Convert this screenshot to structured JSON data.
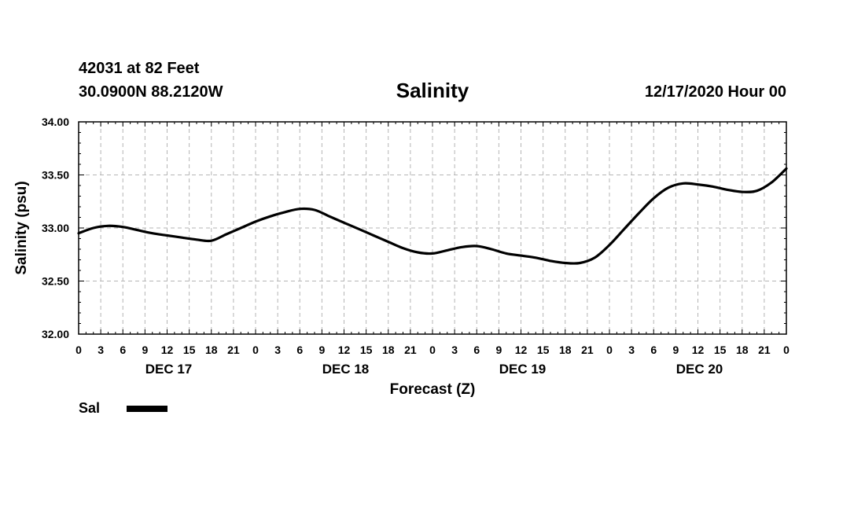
{
  "header": {
    "station": "42031 at 82 Feet",
    "coordinates": "30.0900N 88.2120W",
    "run_time": "12/17/2020 Hour 00"
  },
  "chart_data": {
    "type": "line",
    "title": "Salinity",
    "xlabel": "Forecast (Z)",
    "ylabel": "Salinity (psu)",
    "ylim": [
      32.0,
      34.0
    ],
    "yticks": [
      "32.00",
      "32.50",
      "33.00",
      "33.50",
      "34.00"
    ],
    "xlim_hours": [
      0,
      96
    ],
    "xtick_labels": [
      "0",
      "3",
      "6",
      "9",
      "12",
      "15",
      "18",
      "21",
      "0",
      "3",
      "6",
      "9",
      "12",
      "15",
      "18",
      "21",
      "0",
      "3",
      "6",
      "9",
      "12",
      "15",
      "18",
      "21",
      "0",
      "3",
      "6",
      "9",
      "12",
      "15",
      "18",
      "21",
      "0"
    ],
    "day_labels": [
      "DEC 17",
      "DEC 18",
      "DEC 19",
      "DEC 20"
    ],
    "grid": true,
    "legend_position": "bottom-left",
    "series": [
      {
        "name": "Sal",
        "color": "#000000",
        "x_hours": [
          0,
          2,
          4,
          6,
          8,
          10,
          12,
          14,
          16,
          18,
          20,
          22,
          24,
          26,
          28,
          30,
          32,
          34,
          36,
          38,
          40,
          42,
          44,
          46,
          48,
          50,
          52,
          54,
          56,
          58,
          60,
          62,
          64,
          66,
          68,
          70,
          72,
          74,
          76,
          78,
          80,
          82,
          84,
          86,
          88,
          90,
          92,
          94,
          96
        ],
        "values": [
          32.95,
          33.0,
          33.02,
          33.01,
          32.98,
          32.95,
          32.93,
          32.91,
          32.89,
          32.88,
          32.94,
          33.0,
          33.06,
          33.11,
          33.15,
          33.18,
          33.17,
          33.11,
          33.05,
          32.99,
          32.93,
          32.87,
          32.81,
          32.77,
          32.76,
          32.79,
          32.82,
          32.83,
          32.8,
          32.76,
          32.74,
          32.72,
          32.69,
          32.67,
          32.67,
          32.72,
          32.84,
          32.99,
          33.14,
          33.28,
          33.38,
          33.42,
          33.41,
          33.39,
          33.36,
          33.34,
          33.35,
          33.43,
          33.56
        ]
      }
    ]
  }
}
